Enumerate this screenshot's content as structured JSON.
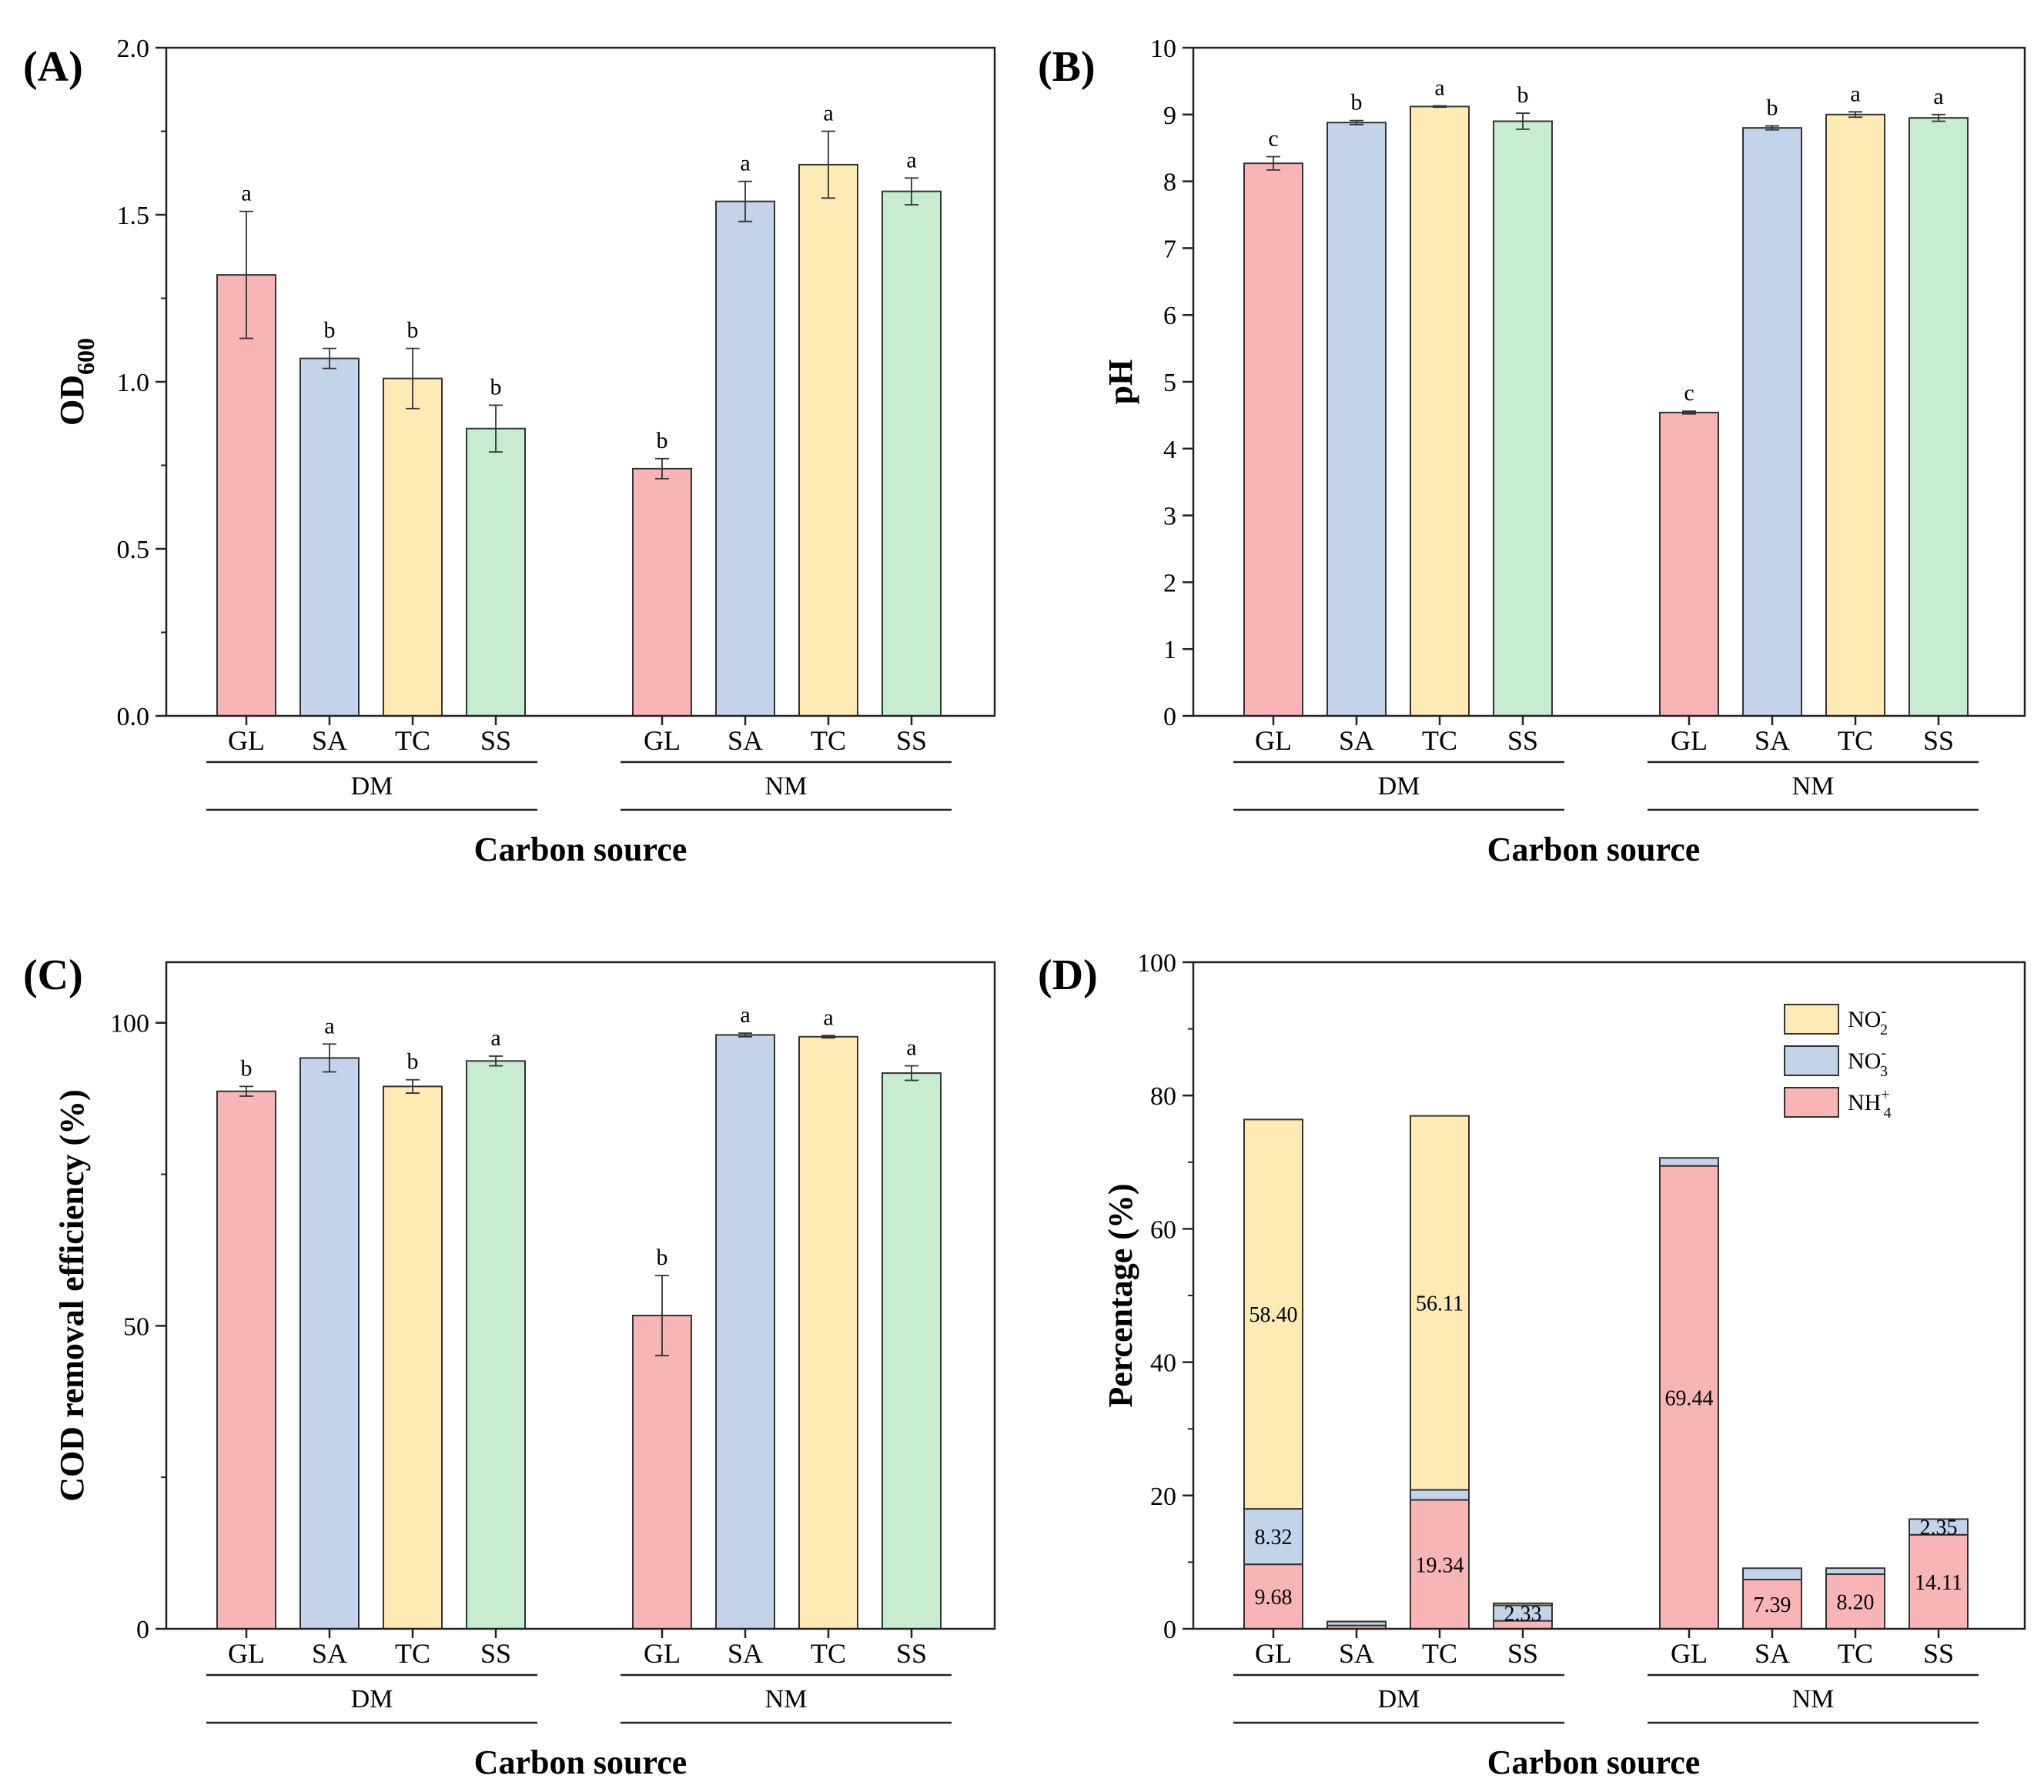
{
  "colors": {
    "GL": "#f9b4b6",
    "SA": "#c2d3ea",
    "TC": "#fdeab5",
    "SS": "#c7eccf",
    "NO2": "#fdeab5",
    "NO3": "#c2d3ea",
    "NH4": "#f9b4b6"
  },
  "chart_data": [
    {
      "panel": "(A)",
      "type": "bar",
      "ylabel": "OD600",
      "ylabel_main": "OD",
      "ylabel_sub": "600",
      "xlabel": "Carbon source",
      "ylim": [
        0,
        2.0
      ],
      "yticks": [
        "0.0",
        "0.5",
        "1.0",
        "1.5",
        "2.0"
      ],
      "groups": [
        "DM",
        "NM"
      ],
      "categories": [
        "GL",
        "SA",
        "TC",
        "SS"
      ],
      "series": [
        {
          "group": "DM",
          "values": [
            1.32,
            1.07,
            1.01,
            0.86
          ],
          "errors": [
            0.19,
            0.03,
            0.09,
            0.07
          ],
          "letters": [
            "a",
            "b",
            "b",
            "b"
          ]
        },
        {
          "group": "NM",
          "values": [
            0.74,
            1.54,
            1.65,
            1.57
          ],
          "errors": [
            0.03,
            0.06,
            0.1,
            0.04
          ],
          "letters": [
            "b",
            "a",
            "a",
            "a"
          ]
        }
      ]
    },
    {
      "panel": "(B)",
      "type": "bar",
      "ylabel": "pH",
      "xlabel": "Carbon source",
      "ylim": [
        0,
        10
      ],
      "yticks": [
        "0",
        "1",
        "2",
        "3",
        "4",
        "5",
        "6",
        "7",
        "8",
        "9",
        "10"
      ],
      "groups": [
        "DM",
        "NM"
      ],
      "categories": [
        "GL",
        "SA",
        "TC",
        "SS"
      ],
      "series": [
        {
          "group": "DM",
          "values": [
            8.27,
            8.88,
            9.12,
            8.9
          ],
          "errors": [
            0.1,
            0.03,
            0.01,
            0.12
          ],
          "letters": [
            "c",
            "b",
            "a",
            "b"
          ]
        },
        {
          "group": "NM",
          "values": [
            4.54,
            8.8,
            9.0,
            8.95
          ],
          "errors": [
            0.02,
            0.03,
            0.04,
            0.05
          ],
          "letters": [
            "c",
            "b",
            "a",
            "a"
          ]
        }
      ]
    },
    {
      "panel": "(C)",
      "type": "bar",
      "ylabel": "COD removal efficiency (%)",
      "xlabel": "Carbon source",
      "ylim": [
        0,
        110
      ],
      "yticks": [
        "0",
        "50",
        "100"
      ],
      "groups": [
        "DM",
        "NM"
      ],
      "categories": [
        "GL",
        "SA",
        "TC",
        "SS"
      ],
      "series": [
        {
          "group": "DM",
          "values": [
            88.7,
            94.2,
            89.5,
            93.7
          ],
          "errors": [
            0.8,
            2.3,
            1.1,
            0.8
          ],
          "letters": [
            "b",
            "a",
            "b",
            "a"
          ]
        },
        {
          "group": "NM",
          "values": [
            51.7,
            98.0,
            97.7,
            91.7
          ],
          "errors": [
            6.6,
            0.3,
            0.2,
            1.2
          ],
          "letters": [
            "b",
            "a",
            "a",
            "a"
          ]
        }
      ]
    },
    {
      "panel": "(D)",
      "type": "bar",
      "stacked": true,
      "ylabel": "Percentage (%)",
      "xlabel": "Carbon source",
      "ylim": [
        0,
        100
      ],
      "yticks": [
        "0",
        "20",
        "40",
        "60",
        "80",
        "100"
      ],
      "groups": [
        "DM",
        "NM"
      ],
      "categories": [
        "GL",
        "SA",
        "TC",
        "SS"
      ],
      "legend": {
        "placement": "top-right",
        "entries": [
          {
            "key": "NO2",
            "base": "NO",
            "sub": "2",
            "sup": "-"
          },
          {
            "key": "NO3",
            "base": "NO",
            "sub": "3",
            "sup": "-"
          },
          {
            "key": "NH4",
            "base": "NH",
            "sub": "4",
            "sup": "+"
          }
        ]
      },
      "stacks": [
        {
          "group": "DM",
          "category": "GL",
          "NH4": 9.68,
          "NO3": 8.32,
          "NO2": 58.4,
          "labels": [
            "9.68",
            "8.32",
            "58.40"
          ]
        },
        {
          "group": "DM",
          "category": "SA",
          "NH4": 0.5,
          "NO3": 0.6,
          "NO2": 0.0,
          "labels": [
            "",
            "",
            ""
          ]
        },
        {
          "group": "DM",
          "category": "TC",
          "NH4": 19.34,
          "NO3": 1.5,
          "NO2": 56.11,
          "labels": [
            "19.34",
            "",
            "56.11"
          ]
        },
        {
          "group": "DM",
          "category": "SS",
          "NH4": 1.2,
          "NO3": 2.33,
          "NO2": 0.3,
          "labels": [
            "",
            "2.33",
            ""
          ]
        },
        {
          "group": "NM",
          "category": "GL",
          "NH4": 69.44,
          "NO3": 1.2,
          "NO2": 0.0,
          "labels": [
            "69.44",
            "",
            ""
          ]
        },
        {
          "group": "NM",
          "category": "SA",
          "NH4": 7.39,
          "NO3": 1.7,
          "NO2": 0.0,
          "labels": [
            "7.39",
            "",
            ""
          ]
        },
        {
          "group": "NM",
          "category": "TC",
          "NH4": 8.2,
          "NO3": 0.9,
          "NO2": 0.0,
          "labels": [
            "8.20",
            "",
            ""
          ]
        },
        {
          "group": "NM",
          "category": "SS",
          "NH4": 14.11,
          "NO3": 2.35,
          "NO2": 0.0,
          "labels": [
            "14.11",
            "2.35",
            ""
          ]
        }
      ]
    }
  ]
}
